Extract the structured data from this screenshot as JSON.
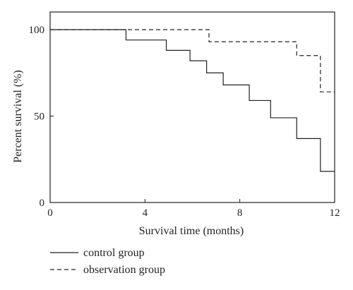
{
  "chart_data": {
    "type": "line",
    "title": "",
    "xlabel": "Survival time (months)",
    "ylabel": "Percent survival (%)",
    "xlim": [
      0,
      12
    ],
    "ylim": [
      0,
      100
    ],
    "xticks": [
      0,
      4,
      8,
      12
    ],
    "yticks": [
      0,
      50,
      100
    ],
    "grid": false,
    "legend_position": "bottom-left",
    "step": true,
    "series": [
      {
        "name": "control group",
        "line_style": "solid",
        "color": "#231f20",
        "x": [
          0,
          3.2,
          4.9,
          5.9,
          6.6,
          7.3,
          8.4,
          9.3,
          10.4,
          11.4,
          12
        ],
        "y": [
          100,
          94,
          88,
          82,
          75,
          68,
          59,
          49,
          37,
          18,
          18
        ]
      },
      {
        "name": "observation group",
        "line_style": "dashed",
        "color": "#231f20",
        "x": [
          0,
          6.7,
          10.4,
          11.4,
          12
        ],
        "y": [
          100,
          93,
          85,
          64,
          64
        ]
      }
    ]
  }
}
